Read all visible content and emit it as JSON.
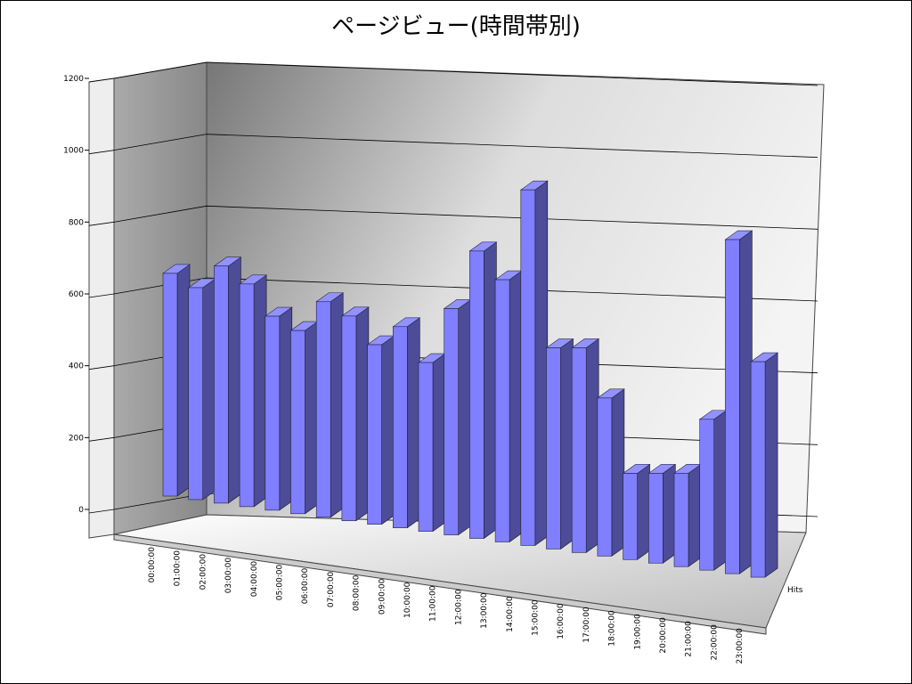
{
  "chart_data": {
    "type": "bar3d",
    "title": "ページビュー(時間帯別)",
    "categories": [
      "00:00:00",
      "01:00:00",
      "02:00:00",
      "03:00:00",
      "04:00:00",
      "05:00:00",
      "06:00:00",
      "07:00:00",
      "08:00:00",
      "09:00:00",
      "10:00:00",
      "11:00:00",
      "12:00:00",
      "13:00:00",
      "14:00:00",
      "15:00:00",
      "16:00:00",
      "17:00:00",
      "18:00:00",
      "19:00:00",
      "20:00:00",
      "21:00:00",
      "22:00:00",
      "23:00:00"
    ],
    "series": [
      {
        "name": "Hits",
        "color": "#7f7fff",
        "values": [
          620,
          590,
          660,
          620,
          540,
          510,
          600,
          570,
          500,
          560,
          470,
          630,
          800,
          730,
          990,
          560,
          570,
          440,
          240,
          250,
          260,
          420,
          930,
          600
        ]
      }
    ],
    "ylim": [
      0,
      1200
    ],
    "yticks": [
      0,
      200,
      400,
      600,
      800,
      1000,
      1200
    ],
    "grid": true
  }
}
